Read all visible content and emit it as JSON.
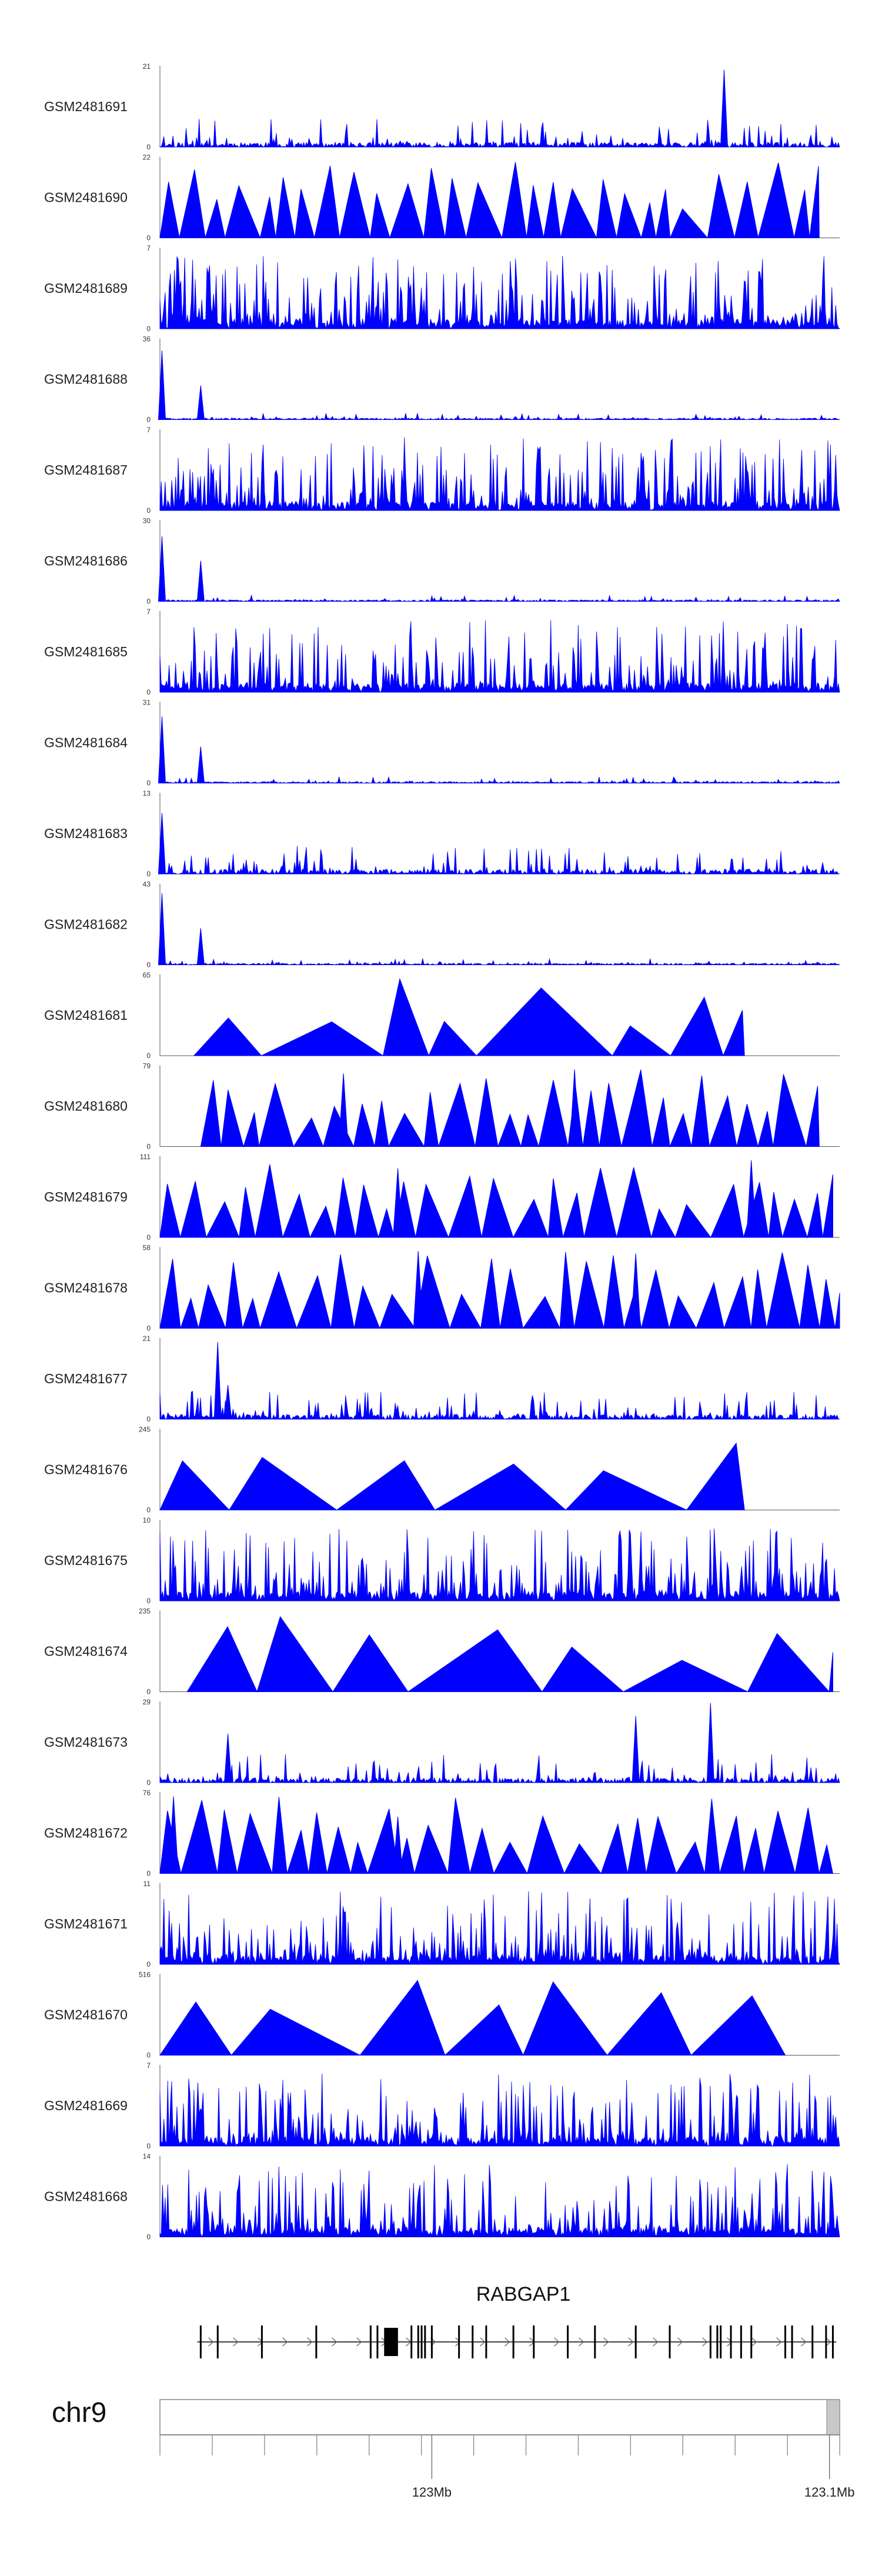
{
  "chart_data": {
    "type": "area",
    "color": "#0000ff",
    "track_max_label_min": "0",
    "tracks": [
      {
        "name": "GSM2481691",
        "ymax": "21",
        "style": "dense",
        "seed": 11,
        "peaks": [
          [
            0.83,
            0.95
          ]
        ]
      },
      {
        "name": "GSM2481690",
        "ymax": "22",
        "style": "triangles",
        "seed": 23,
        "end": 0.97,
        "peaks": []
      },
      {
        "name": "GSM2481689",
        "ymax": "7",
        "style": "noisy",
        "seed": 37,
        "peaks": []
      },
      {
        "name": "GSM2481688",
        "ymax": "36",
        "style": "spike",
        "seed": 41,
        "peaks": [
          [
            0.003,
            0.85
          ],
          [
            0.06,
            0.42
          ]
        ]
      },
      {
        "name": "GSM2481687",
        "ymax": "7",
        "style": "noisy",
        "seed": 53,
        "peaks": []
      },
      {
        "name": "GSM2481686",
        "ymax": "30",
        "style": "spike",
        "seed": 61,
        "peaks": [
          [
            0.003,
            0.8
          ],
          [
            0.06,
            0.5
          ]
        ]
      },
      {
        "name": "GSM2481685",
        "ymax": "7",
        "style": "noisy",
        "seed": 71,
        "peaks": []
      },
      {
        "name": "GSM2481684",
        "ymax": "31",
        "style": "spike",
        "seed": 83,
        "peaks": [
          [
            0.003,
            0.82
          ],
          [
            0.06,
            0.45
          ]
        ]
      },
      {
        "name": "GSM2481683",
        "ymax": "13",
        "style": "dense",
        "seed": 97,
        "peaks": [
          [
            0.003,
            0.75
          ]
        ]
      },
      {
        "name": "GSM2481682",
        "ymax": "43",
        "style": "spike",
        "seed": 101,
        "peaks": [
          [
            0.003,
            0.88
          ],
          [
            0.06,
            0.45
          ]
        ]
      },
      {
        "name": "GSM2481681",
        "ymax": "65",
        "style": "triangles",
        "seed": 113,
        "start": 0.05,
        "end": 0.86,
        "wide": true,
        "peaks": []
      },
      {
        "name": "GSM2481680",
        "ymax": "79",
        "style": "triangles",
        "seed": 127,
        "start": 0.06,
        "end": 0.97,
        "peaks": [
          [
            0.27,
            0.9
          ],
          [
            0.61,
            0.95
          ]
        ]
      },
      {
        "name": "GSM2481679",
        "ymax": "111",
        "style": "triangles",
        "seed": 131,
        "start": 0.0,
        "end": 0.99,
        "peaks": [
          [
            0.35,
            0.85
          ],
          [
            0.87,
            0.95
          ]
        ]
      },
      {
        "name": "GSM2481678",
        "ymax": "58",
        "style": "triangles",
        "seed": 149,
        "start": 0.0,
        "end": 1.0,
        "peaks": [
          [
            0.38,
            0.95
          ],
          [
            0.7,
            0.92
          ]
        ]
      },
      {
        "name": "GSM2481677",
        "ymax": "21",
        "style": "dense",
        "seed": 151,
        "peaks": [
          [
            0.085,
            0.95
          ],
          [
            0.1,
            0.42
          ]
        ]
      },
      {
        "name": "GSM2481676",
        "ymax": "245",
        "style": "triangles",
        "seed": 163,
        "start": 0.0,
        "end": 0.86,
        "wide": true,
        "peaks": []
      },
      {
        "name": "GSM2481675",
        "ymax": "10",
        "style": "noisy",
        "seed": 173,
        "peaks": []
      },
      {
        "name": "GSM2481674",
        "ymax": "235",
        "style": "triangles",
        "seed": 181,
        "start": 0.04,
        "end": 0.99,
        "wide": true,
        "peaks": []
      },
      {
        "name": "GSM2481673",
        "ymax": "29",
        "style": "dense",
        "seed": 191,
        "peaks": [
          [
            0.1,
            0.6
          ],
          [
            0.7,
            0.82
          ],
          [
            0.81,
            0.98
          ]
        ]
      },
      {
        "name": "GSM2481672",
        "ymax": "76",
        "style": "triangles",
        "seed": 197,
        "start": 0.0,
        "end": 0.99,
        "peaks": [
          [
            0.02,
            0.95
          ],
          [
            0.35,
            0.7
          ]
        ]
      },
      {
        "name": "GSM2481671",
        "ymax": "11",
        "style": "noisy",
        "seed": 211,
        "peaks": []
      },
      {
        "name": "GSM2481670",
        "ymax": "516",
        "style": "triangles",
        "seed": 223,
        "start": 0.0,
        "end": 0.92,
        "wide": true,
        "peaks": []
      },
      {
        "name": "GSM2481669",
        "ymax": "7",
        "style": "noisy",
        "seed": 227,
        "peaks": []
      },
      {
        "name": "GSM2481668",
        "ymax": "14",
        "style": "noisy",
        "seed": 229,
        "peaks": []
      }
    ],
    "gene": {
      "name": "RABGAP1",
      "strand": "+",
      "exons": [
        0.06,
        0.085,
        0.15,
        0.23,
        0.31,
        0.32,
        0.335,
        0.345,
        0.37,
        0.38,
        0.385,
        0.39,
        0.4,
        0.44,
        0.46,
        0.48,
        0.52,
        0.55,
        0.6,
        0.64,
        0.7,
        0.75,
        0.81,
        0.82,
        0.825,
        0.84,
        0.855,
        0.87,
        0.92,
        0.93,
        0.96,
        0.98,
        0.99
      ]
    },
    "chromosome": {
      "name": "chr9",
      "ticks": [
        {
          "pos": 0.4,
          "label": "123Mb"
        },
        {
          "pos": 0.985,
          "label": "123.1Mb"
        }
      ]
    }
  }
}
